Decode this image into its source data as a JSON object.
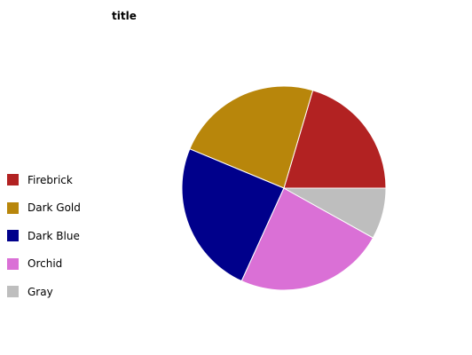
{
  "chart_data": {
    "type": "pie",
    "title": "title",
    "slices": [
      {
        "label": "Firebrick",
        "value": 19.2,
        "color": "#b22222"
      },
      {
        "label": "Dark Gold",
        "value": 21.9,
        "color": "#b8860b"
      },
      {
        "label": "Dark Blue",
        "value": 23.0,
        "color": "#00008b"
      },
      {
        "label": "Orchid",
        "value": 22.3,
        "color": "#da70d6"
      },
      {
        "label": "Gray",
        "value": 7.6,
        "color": "#bebebe"
      }
    ],
    "legend_position": "left"
  }
}
